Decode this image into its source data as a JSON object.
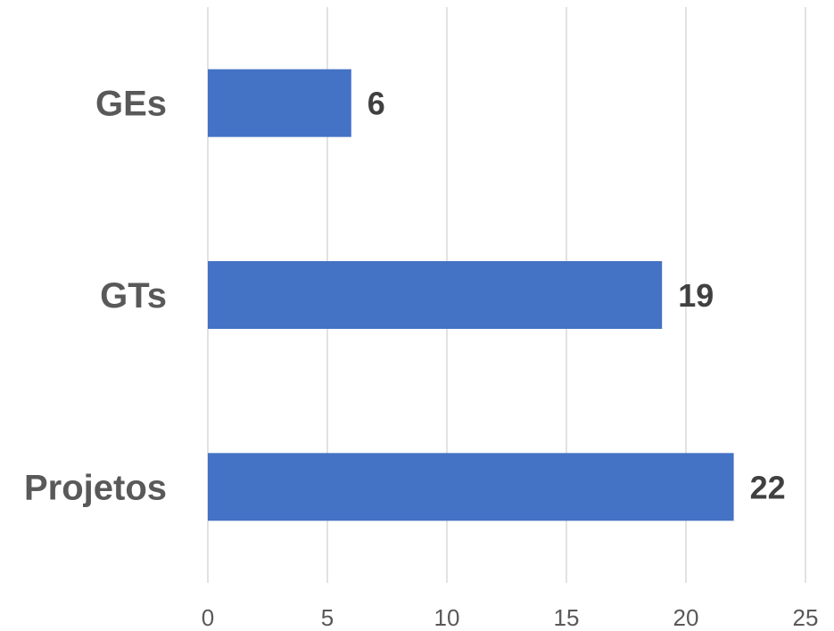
{
  "chart_data": {
    "type": "bar",
    "orientation": "horizontal",
    "categories": [
      "GEs",
      "GTs",
      "Projetos"
    ],
    "values": [
      6,
      19,
      22
    ],
    "data_labels": [
      "6",
      "19",
      "22"
    ],
    "xlim": [
      0,
      25
    ],
    "x_ticks": [
      0,
      5,
      10,
      15,
      20,
      25
    ],
    "x_tick_labels": [
      "0",
      "5",
      "10",
      "15",
      "20",
      "25"
    ],
    "grid": "vertical",
    "legend": "none",
    "title": "",
    "xlabel": "",
    "ylabel": "",
    "colors": {
      "bar": "#4472c4",
      "grid": "#d9d9d9",
      "category_text": "#595959",
      "data_label_text": "#404040"
    }
  }
}
